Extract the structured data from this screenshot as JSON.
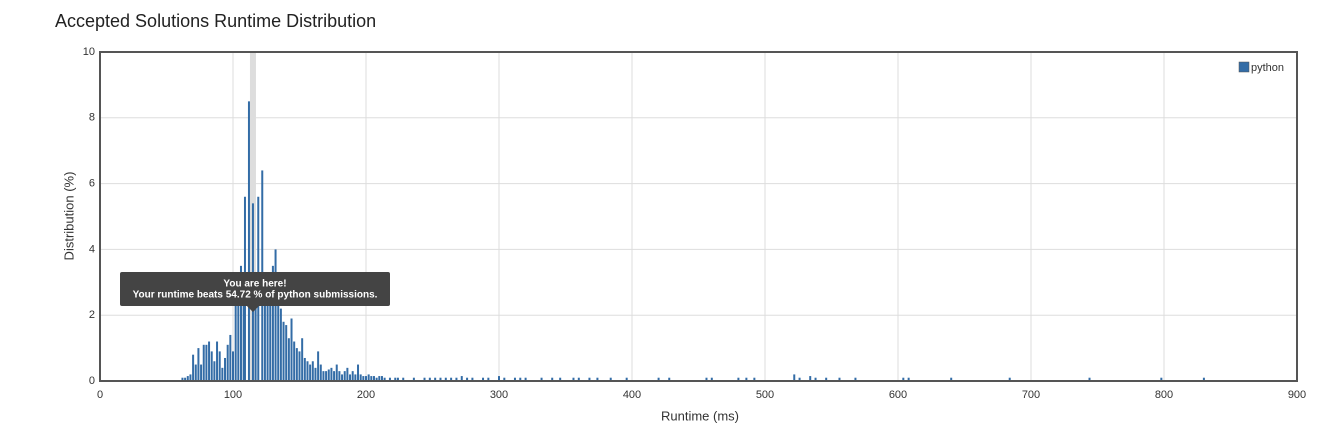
{
  "chart_data": {
    "type": "bar",
    "title": "Accepted Solutions Runtime Distribution",
    "x_label": "Runtime (ms)",
    "y_label": "Distribution (%)",
    "x": [
      62,
      64,
      66,
      68,
      70,
      72,
      74,
      76,
      78,
      80,
      82,
      84,
      86,
      88,
      90,
      92,
      94,
      96,
      98,
      100,
      102,
      104,
      106,
      108,
      109,
      112,
      115,
      117,
      119,
      122,
      124,
      126,
      128,
      130,
      132,
      134,
      136,
      138,
      140,
      142,
      144,
      146,
      148,
      150,
      152,
      154,
      156,
      158,
      160,
      162,
      164,
      166,
      168,
      170,
      172,
      174,
      176,
      178,
      180,
      182,
      184,
      186,
      188,
      190,
      192,
      194,
      196,
      198,
      200,
      202,
      204,
      206,
      208,
      210,
      212,
      214,
      218,
      222,
      224,
      228,
      236,
      244,
      248,
      252,
      256,
      260,
      264,
      268,
      272,
      276,
      280,
      288,
      292,
      300,
      304,
      312,
      316,
      320,
      332,
      340,
      346,
      356,
      360,
      368,
      374,
      384,
      396,
      420,
      428,
      456,
      460,
      480,
      486,
      492,
      522,
      526,
      534,
      538,
      546,
      556,
      568,
      604,
      608,
      640,
      684,
      744,
      798,
      830,
      900
    ],
    "series": [
      {
        "name": "python",
        "color": "#336ca6",
        "values": [
          0.1,
          0.1,
          0.15,
          0.2,
          0.8,
          0.5,
          1.0,
          0.5,
          1.1,
          1.1,
          1.2,
          0.9,
          0.6,
          1.2,
          0.9,
          0.4,
          0.7,
          1.1,
          1.4,
          0.9,
          2.3,
          3.2,
          3.5,
          3.1,
          5.6,
          8.5,
          5.4,
          2.7,
          5.6,
          6.4,
          3.0,
          2.5,
          3.3,
          3.5,
          4.0,
          2.8,
          2.2,
          1.8,
          1.7,
          1.3,
          1.9,
          1.2,
          1.0,
          0.9,
          1.3,
          0.7,
          0.6,
          0.5,
          0.6,
          0.4,
          0.9,
          0.5,
          0.3,
          0.3,
          0.35,
          0.4,
          0.3,
          0.5,
          0.3,
          0.2,
          0.3,
          0.4,
          0.2,
          0.3,
          0.2,
          0.5,
          0.2,
          0.15,
          0.15,
          0.2,
          0.15,
          0.15,
          0.1,
          0.15,
          0.15,
          0.1,
          0.1,
          0.1,
          0.1,
          0.1,
          0.1,
          0.1,
          0.1,
          0.1,
          0.1,
          0.1,
          0.1,
          0.1,
          0.15,
          0.1,
          0.1,
          0.1,
          0.1,
          0.15,
          0.1,
          0.1,
          0.1,
          0.1,
          0.1,
          0.1,
          0.1,
          0.1,
          0.1,
          0.1,
          0.1,
          0.1,
          0.1,
          0.1,
          0.1,
          0.1,
          0.1,
          0.1,
          0.1,
          0.1,
          0.2,
          0.1,
          0.15,
          0.1,
          0.1,
          0.1,
          0.1,
          0.1,
          0.1,
          0.1,
          0.1,
          0.1,
          0.1,
          0.1,
          0.15
        ]
      }
    ],
    "xlim": [
      0,
      900
    ],
    "xticks": [
      0,
      100,
      200,
      300,
      400,
      500,
      600,
      700,
      800,
      900
    ],
    "ylim": [
      0,
      10
    ],
    "yticks": [
      0,
      2,
      4,
      6,
      8,
      10
    ],
    "grid": true,
    "legend": "top-right",
    "annotation": {
      "x": 115,
      "lines": [
        "You are here!",
        "Your runtime beats 54.72 % of python submissions."
      ]
    }
  }
}
